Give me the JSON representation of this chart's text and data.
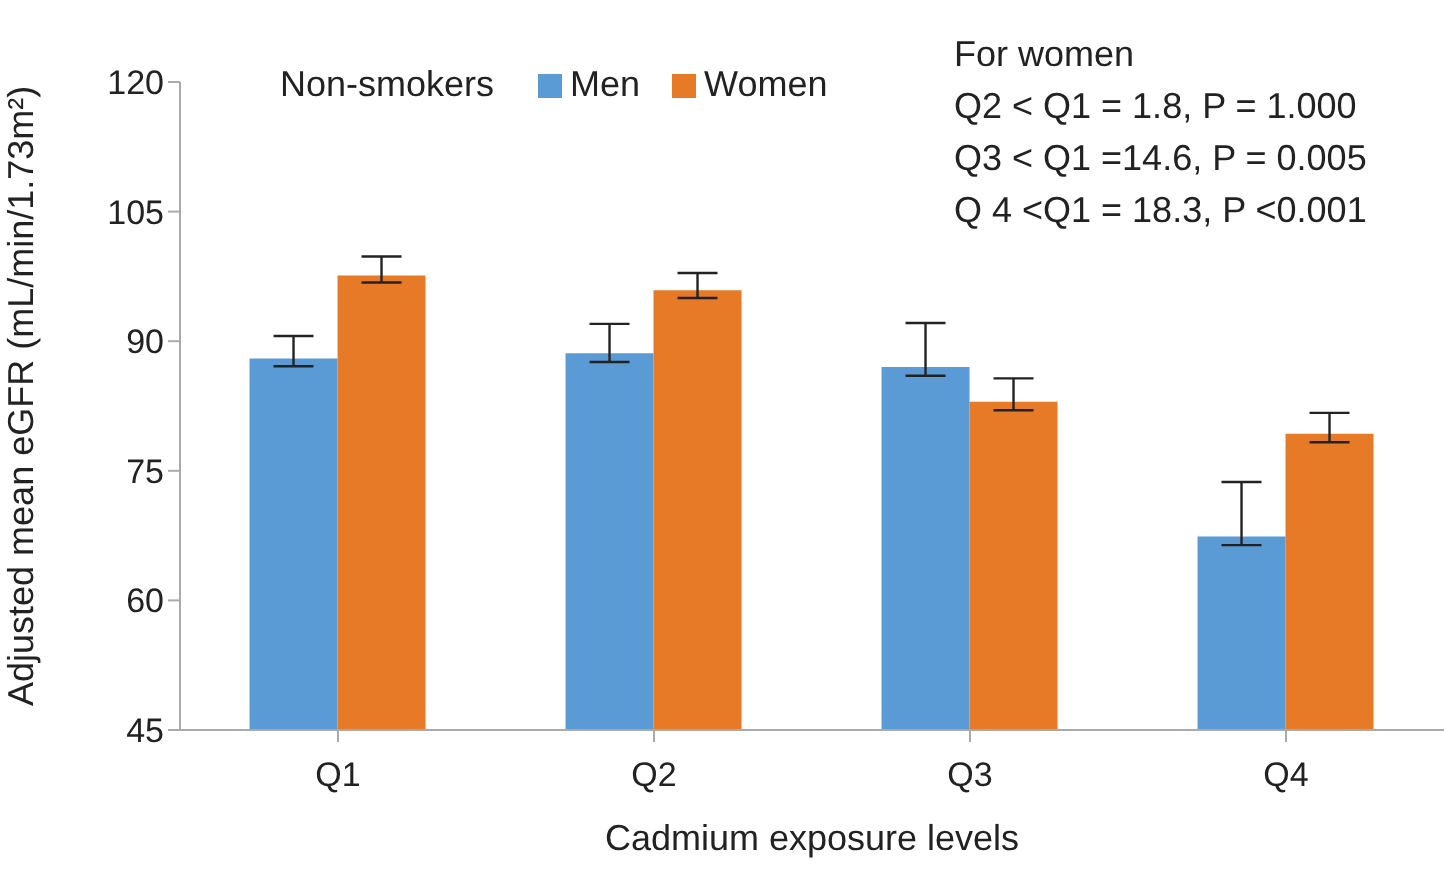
{
  "chart_data": {
    "type": "bar",
    "xlabel": "Cadmium exposure levels",
    "ylabel": "Adjusted mean eGFR (mL/min/1.73m²)",
    "legend_title": "Non-smokers",
    "categories": [
      "Q1",
      "Q2",
      "Q3",
      "Q4"
    ],
    "series": [
      {
        "name": "Men",
        "color": "#5b9bd5",
        "values": [
          88.0,
          88.6,
          87.0,
          67.4
        ],
        "errors": [
          [
            87.1,
            90.6
          ],
          [
            87.6,
            92.0
          ],
          [
            86.0,
            92.1
          ],
          [
            66.4,
            73.7
          ]
        ]
      },
      {
        "name": "Women",
        "color": "#e67a27",
        "values": [
          97.6,
          95.9,
          83.0,
          79.3
        ],
        "errors": [
          [
            96.8,
            99.8
          ],
          [
            95.0,
            97.9
          ],
          [
            82.0,
            85.7
          ],
          [
            78.3,
            81.7
          ]
        ]
      }
    ],
    "ylim": [
      45,
      120
    ],
    "yticks": [
      45,
      60,
      75,
      90,
      105,
      120
    ],
    "grid": false,
    "legend": "top",
    "annotations": [
      "For women",
      "Q2 < Q1 =  1.8, P = 1.000",
      "Q3 < Q1 =14.6, P = 0.005",
      "Q 4 <Q1 = 18.3, P <0.001"
    ]
  }
}
